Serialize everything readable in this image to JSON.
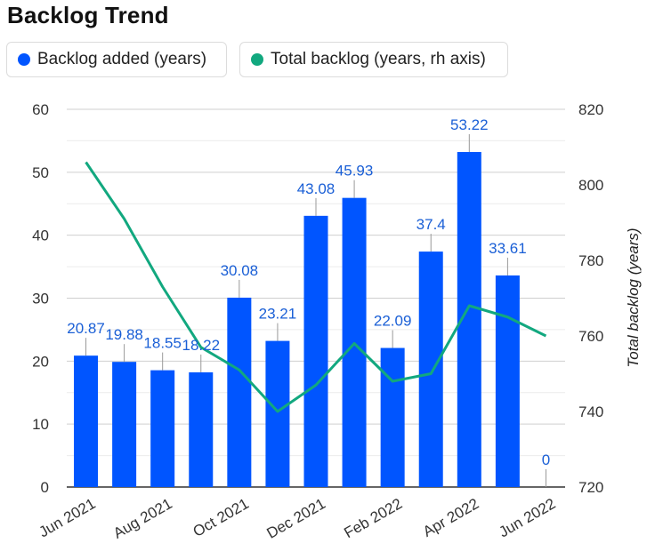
{
  "title": "Backlog Trend",
  "legend": [
    {
      "label": "Backlog added (years)",
      "color": "#0055ff"
    },
    {
      "label": "Total backlog (years, rh axis)",
      "color": "#12a87f"
    }
  ],
  "chart_data": {
    "type": "bar+line",
    "title": "Backlog Trend",
    "x": [
      "Jun 2021",
      "Jul 2021",
      "Aug 2021",
      "Sep 2021",
      "Oct 2021",
      "Nov 2021",
      "Dec 2021",
      "Jan 2022",
      "Feb 2022",
      "Mar 2022",
      "Apr 2022",
      "May 2022",
      "Jun 2022"
    ],
    "x_tick_labels": [
      "Jun 2021",
      "Aug 2021",
      "Oct 2021",
      "Dec 2021",
      "Feb 2022",
      "Apr 2022",
      "Jun 2022"
    ],
    "series": [
      {
        "name": "Backlog added (years)",
        "type": "bar",
        "axis": "left",
        "color": "#0055ff",
        "values": [
          20.87,
          19.88,
          18.55,
          18.22,
          30.08,
          23.21,
          43.08,
          45.93,
          22.09,
          37.4,
          53.22,
          33.61,
          0
        ],
        "labels": [
          "20.87",
          "19.88",
          "18.55",
          "18.22",
          "30.08",
          "23.21",
          "43.08",
          "45.93",
          "22.09",
          "37.4",
          "53.22",
          "33.61",
          "0"
        ]
      },
      {
        "name": "Total backlog (years, rh axis)",
        "type": "line",
        "axis": "right",
        "color": "#12a87f",
        "values": [
          806,
          791,
          773,
          757,
          751,
          740,
          747,
          758,
          748,
          750,
          768,
          765,
          760
        ]
      }
    ],
    "y_left": {
      "min": 0,
      "max": 60,
      "ticks": [
        0,
        10,
        20,
        30,
        40,
        50,
        60
      ],
      "label": ""
    },
    "y_right": {
      "min": 720,
      "max": 820,
      "ticks": [
        720,
        740,
        760,
        780,
        800,
        820
      ],
      "label": "Total backlog (years)"
    },
    "grid": true
  }
}
